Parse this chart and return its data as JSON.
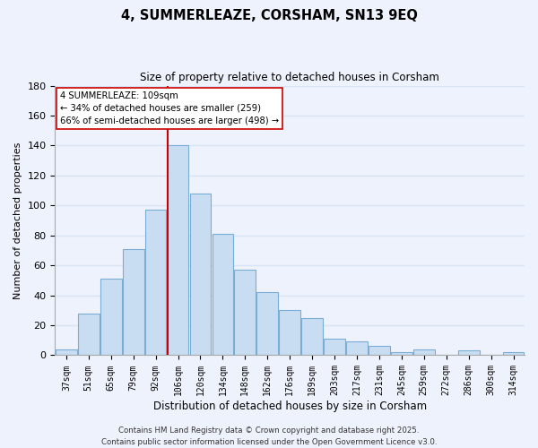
{
  "title": "4, SUMMERLEAZE, CORSHAM, SN13 9EQ",
  "subtitle": "Size of property relative to detached houses in Corsham",
  "xlabel": "Distribution of detached houses by size in Corsham",
  "ylabel": "Number of detached properties",
  "categories": [
    "37sqm",
    "51sqm",
    "65sqm",
    "79sqm",
    "92sqm",
    "106sqm",
    "120sqm",
    "134sqm",
    "148sqm",
    "162sqm",
    "176sqm",
    "189sqm",
    "203sqm",
    "217sqm",
    "231sqm",
    "245sqm",
    "259sqm",
    "272sqm",
    "286sqm",
    "300sqm",
    "314sqm"
  ],
  "values": [
    4,
    28,
    51,
    71,
    97,
    140,
    108,
    81,
    57,
    42,
    30,
    25,
    11,
    9,
    6,
    2,
    4,
    0,
    3,
    0,
    2
  ],
  "bar_color": "#c9ddf2",
  "bar_edge_color": "#7aadd4",
  "highlight_index": 5,
  "highlight_line_color": "#cc0000",
  "ylim": [
    0,
    180
  ],
  "yticks": [
    0,
    20,
    40,
    60,
    80,
    100,
    120,
    140,
    160,
    180
  ],
  "annotation_line1": "4 SUMMERLEAZE: 109sqm",
  "annotation_line2": "← 34% of detached houses are smaller (259)",
  "annotation_line3": "66% of semi-detached houses are larger (498) →",
  "annotation_box_color": "#ffffff",
  "annotation_box_edge": "#cc0000",
  "footer_line1": "Contains HM Land Registry data © Crown copyright and database right 2025.",
  "footer_line2": "Contains public sector information licensed under the Open Government Licence v3.0.",
  "background_color": "#eef2fc",
  "grid_color": "#d8e4f5",
  "title_fontsize": 10.5,
  "subtitle_fontsize": 8.5
}
